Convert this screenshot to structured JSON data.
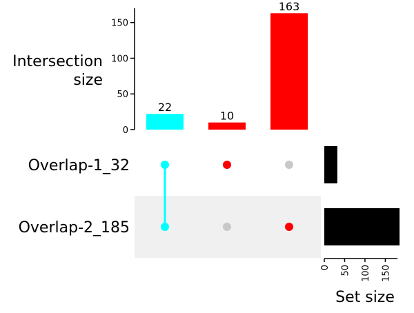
{
  "chart_data": {
    "type": "upset",
    "sets": [
      {
        "name": "Overlap-1_32",
        "size": 32
      },
      {
        "name": "Overlap-2_185",
        "size": 185
      }
    ],
    "intersections": [
      {
        "value": 22,
        "value_label": "22",
        "members": [
          "Overlap-1_32",
          "Overlap-2_185"
        ],
        "color": "#00ffff"
      },
      {
        "value": 10,
        "value_label": "10",
        "members": [
          "Overlap-1_32"
        ],
        "color": "#ff0000"
      },
      {
        "value": 163,
        "value_label": "163",
        "members": [
          "Overlap-2_185"
        ],
        "color": "#ff0000"
      }
    ],
    "intersection_axis": {
      "title_lines": [
        "Intersection",
        "size"
      ],
      "ticks": [
        0,
        50,
        100,
        150
      ],
      "tick_labels": [
        "0",
        "50",
        "100",
        "150"
      ],
      "ylim": [
        0,
        170
      ]
    },
    "set_size_axis": {
      "title": "Set size",
      "ticks": [
        0,
        50,
        100,
        150
      ],
      "tick_labels": [
        "0",
        "50",
        "100",
        "150"
      ],
      "xlim": [
        0,
        190
      ]
    },
    "colors": {
      "set_bar": "#000000",
      "inactive_dot": "#c8c8c8",
      "shaded_row": "#f0f0f0"
    }
  }
}
